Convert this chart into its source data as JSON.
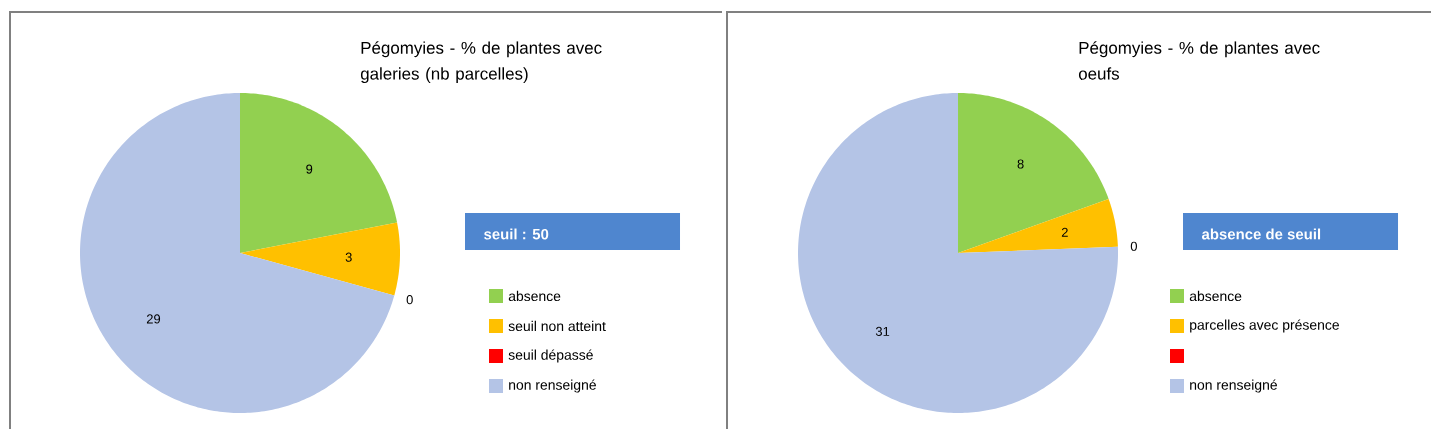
{
  "chart_data": [
    {
      "type": "pie",
      "title": "Pégomyies - % de plantes avec galeries (nb parcelles)",
      "categories": [
        "absence",
        "seuil non atteint",
        "seuil dépassé",
        "non renseigné"
      ],
      "values": [
        9,
        3,
        0,
        29
      ],
      "value_labels": [
        "9",
        "3",
        "0",
        "29"
      ],
      "colors": [
        "#92d050",
        "#ffc000",
        "#ff0000",
        "#b4c4e6"
      ],
      "legend": "right",
      "annotations": [
        "seuil : 50"
      ]
    },
    {
      "type": "pie",
      "title": "Pégomyies - % de plantes avec oeufs",
      "categories": [
        "absence",
        "parcelles avec présence",
        null,
        "non renseigné"
      ],
      "values": [
        8,
        2,
        0,
        31
      ],
      "value_labels": [
        "8",
        "2",
        "0",
        "31"
      ],
      "colors": [
        "#92d050",
        "#ffc000",
        "#ff0000",
        "#b4c4e6"
      ],
      "legend": "right",
      "annotations": [
        "absence de seuil"
      ]
    }
  ]
}
